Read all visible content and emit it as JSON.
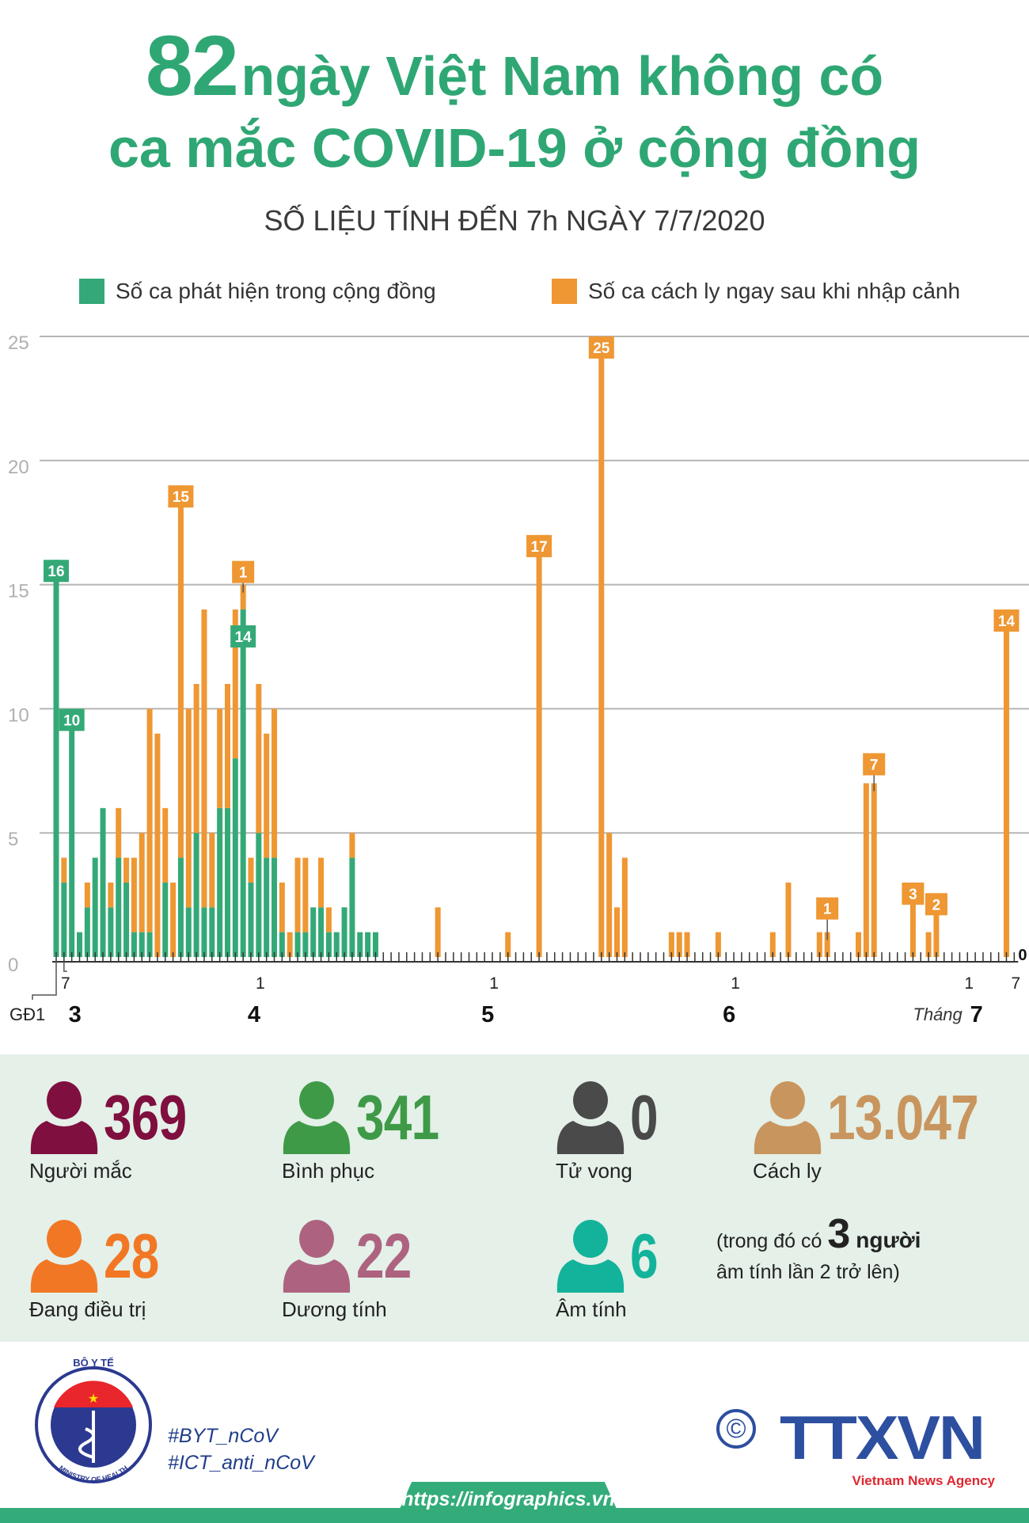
{
  "header": {
    "title_number": "82",
    "title_line1_rest": "ngày Việt Nam không có",
    "title_line2": "ca mắc COVID-19 ở cộng đồng",
    "subtitle": "SỐ LIỆU TÍNH ĐẾN 7h NGÀY 7/7/2020"
  },
  "chart_data": {
    "type": "bar",
    "stacked": true,
    "grid": true,
    "ylim": [
      0,
      25
    ],
    "yticks": [
      "0",
      "5",
      "10",
      "15",
      "20",
      "25"
    ],
    "legend_placement": "top",
    "series": [
      {
        "name": "Số ca phát hiện trong cộng đồng",
        "color": "#34a977"
      },
      {
        "name": "Số ca cách ly ngay sau khi nhập cảnh",
        "color": "#ee9733"
      }
    ],
    "date_range": [
      "2020-03-06",
      "2020-07-07"
    ],
    "days": [
      {
        "date": "2020-03-06",
        "community": 16,
        "imported": 0
      },
      {
        "date": "2020-03-07",
        "community": 3,
        "imported": 1
      },
      {
        "date": "2020-03-08",
        "community": 10,
        "imported": 0
      },
      {
        "date": "2020-03-09",
        "community": 1,
        "imported": 0
      },
      {
        "date": "2020-03-10",
        "community": 2,
        "imported": 1
      },
      {
        "date": "2020-03-11",
        "community": 4,
        "imported": 0
      },
      {
        "date": "2020-03-12",
        "community": 6,
        "imported": 0
      },
      {
        "date": "2020-03-13",
        "community": 2,
        "imported": 1
      },
      {
        "date": "2020-03-14",
        "community": 4,
        "imported": 2
      },
      {
        "date": "2020-03-15",
        "community": 3,
        "imported": 1
      },
      {
        "date": "2020-03-16",
        "community": 1,
        "imported": 3
      },
      {
        "date": "2020-03-17",
        "community": 1,
        "imported": 4
      },
      {
        "date": "2020-03-18",
        "community": 1,
        "imported": 9
      },
      {
        "date": "2020-03-19",
        "community": 0,
        "imported": 9
      },
      {
        "date": "2020-03-20",
        "community": 3,
        "imported": 3
      },
      {
        "date": "2020-03-21",
        "community": 0,
        "imported": 3
      },
      {
        "date": "2020-03-22",
        "community": 4,
        "imported": 15
      },
      {
        "date": "2020-03-23",
        "community": 2,
        "imported": 8
      },
      {
        "date": "2020-03-24",
        "community": 5,
        "imported": 6
      },
      {
        "date": "2020-03-25",
        "community": 2,
        "imported": 12
      },
      {
        "date": "2020-03-26",
        "community": 2,
        "imported": 3
      },
      {
        "date": "2020-03-27",
        "community": 6,
        "imported": 4
      },
      {
        "date": "2020-03-28",
        "community": 6,
        "imported": 5
      },
      {
        "date": "2020-03-29",
        "community": 8,
        "imported": 6
      },
      {
        "date": "2020-03-30",
        "community": 14,
        "imported": 1
      },
      {
        "date": "2020-03-31",
        "community": 3,
        "imported": 1
      },
      {
        "date": "2020-04-01",
        "community": 5,
        "imported": 6
      },
      {
        "date": "2020-04-02",
        "community": 4,
        "imported": 5
      },
      {
        "date": "2020-04-03",
        "community": 4,
        "imported": 6
      },
      {
        "date": "2020-04-04",
        "community": 1,
        "imported": 2
      },
      {
        "date": "2020-04-05",
        "community": 0,
        "imported": 1
      },
      {
        "date": "2020-04-06",
        "community": 1,
        "imported": 3
      },
      {
        "date": "2020-04-07",
        "community": 1,
        "imported": 3
      },
      {
        "date": "2020-04-08",
        "community": 2,
        "imported": 0
      },
      {
        "date": "2020-04-09",
        "community": 2,
        "imported": 2
      },
      {
        "date": "2020-04-10",
        "community": 1,
        "imported": 1
      },
      {
        "date": "2020-04-11",
        "community": 1,
        "imported": 0
      },
      {
        "date": "2020-04-12",
        "community": 2,
        "imported": 0
      },
      {
        "date": "2020-04-13",
        "community": 4,
        "imported": 1
      },
      {
        "date": "2020-04-14",
        "community": 1,
        "imported": 0
      },
      {
        "date": "2020-04-15",
        "community": 1,
        "imported": 0
      },
      {
        "date": "2020-04-16",
        "community": 1,
        "imported": 0
      },
      {
        "date": "2020-04-24",
        "community": 0,
        "imported": 2
      },
      {
        "date": "2020-05-03",
        "community": 0,
        "imported": 1
      },
      {
        "date": "2020-05-07",
        "community": 0,
        "imported": 17
      },
      {
        "date": "2020-05-15",
        "community": 0,
        "imported": 25
      },
      {
        "date": "2020-05-16",
        "community": 0,
        "imported": 5
      },
      {
        "date": "2020-05-17",
        "community": 0,
        "imported": 2
      },
      {
        "date": "2020-05-18",
        "community": 0,
        "imported": 4
      },
      {
        "date": "2020-05-24",
        "community": 0,
        "imported": 1
      },
      {
        "date": "2020-05-25",
        "community": 0,
        "imported": 1
      },
      {
        "date": "2020-05-26",
        "community": 0,
        "imported": 1
      },
      {
        "date": "2020-05-30",
        "community": 0,
        "imported": 1
      },
      {
        "date": "2020-06-06",
        "community": 0,
        "imported": 1
      },
      {
        "date": "2020-06-08",
        "community": 0,
        "imported": 3
      },
      {
        "date": "2020-06-12",
        "community": 0,
        "imported": 1
      },
      {
        "date": "2020-06-13",
        "community": 0,
        "imported": 1
      },
      {
        "date": "2020-06-17",
        "community": 0,
        "imported": 1
      },
      {
        "date": "2020-06-18",
        "community": 0,
        "imported": 7
      },
      {
        "date": "2020-06-19",
        "community": 0,
        "imported": 7
      },
      {
        "date": "2020-06-24",
        "community": 0,
        "imported": 3
      },
      {
        "date": "2020-06-26",
        "community": 0,
        "imported": 1
      },
      {
        "date": "2020-06-27",
        "community": 0,
        "imported": 2
      },
      {
        "date": "2020-07-06",
        "community": 0,
        "imported": 14
      },
      {
        "date": "2020-07-07",
        "community": 0,
        "imported": 0
      }
    ],
    "annotations": [
      {
        "date": "2020-03-06",
        "text": "16",
        "series": "community"
      },
      {
        "date": "2020-03-08",
        "text": "10",
        "series": "community"
      },
      {
        "date": "2020-03-22",
        "text": "15",
        "series": "imported"
      },
      {
        "date": "2020-03-30",
        "text": "1",
        "series": "imported"
      },
      {
        "date": "2020-03-30",
        "text": "14",
        "series": "community"
      },
      {
        "date": "2020-05-07",
        "text": "17",
        "series": "imported"
      },
      {
        "date": "2020-05-15",
        "text": "25",
        "series": "imported"
      },
      {
        "date": "2020-06-13",
        "text": "1",
        "series": "imported"
      },
      {
        "date": "2020-06-19",
        "text": "7",
        "series": "imported"
      },
      {
        "date": "2020-06-24",
        "text": "3",
        "series": "imported"
      },
      {
        "date": "2020-06-27",
        "text": "2",
        "series": "imported"
      },
      {
        "date": "2020-07-06",
        "text": "14",
        "series": "imported"
      },
      {
        "date": "2020-07-07",
        "text": "0",
        "series": "imported"
      }
    ],
    "xtick_labels": [
      {
        "date": "2020-03-07",
        "text": "7"
      },
      {
        "date": "2020-04-01",
        "text": "1"
      },
      {
        "date": "2020-05-01",
        "text": "1"
      },
      {
        "date": "2020-06-01",
        "text": "1"
      },
      {
        "date": "2020-07-01",
        "text": "1"
      },
      {
        "date": "2020-07-07",
        "text": "7"
      }
    ],
    "phase_label": "GĐ1",
    "month_labels": [
      {
        "date": "2020-03-08",
        "prefix": "",
        "text": "3"
      },
      {
        "date": "2020-03-31",
        "prefix": "",
        "text": "4"
      },
      {
        "date": "2020-04-30",
        "prefix": "",
        "text": "5"
      },
      {
        "date": "2020-05-31",
        "prefix": "",
        "text": "6"
      },
      {
        "date": "2020-06-29",
        "prefix": "Tháng",
        "text": "7"
      }
    ]
  },
  "stats": [
    {
      "value": "369",
      "label": "Người mắc",
      "color": "#7f0f3e"
    },
    {
      "value": "341",
      "label": "Bình phục",
      "color": "#3f9a48"
    },
    {
      "value": "0",
      "label": "Tử vong",
      "color": "#4a4a4a"
    },
    {
      "value": "13.047",
      "label": "Cách ly",
      "color": "#c9955e"
    },
    {
      "value": "28",
      "label": "Đang điều trị",
      "color": "#f27725"
    },
    {
      "value": "22",
      "label": "Dương tính",
      "color": "#ad6380"
    },
    {
      "value": "6",
      "label": "Âm tính",
      "color": "#12b39a"
    }
  ],
  "note": {
    "before": "(trong đó có",
    "number": "3",
    "after": "người",
    "line2": "âm tính lần 2 trở lên)"
  },
  "footer": {
    "moh_logo_text_top": "BỘ Y TẾ",
    "moh_logo_text_bottom": "MINISTRY OF HEALTH",
    "hashtag1": "#BYT_nCoV",
    "hashtag2": "#ICT_anti_nCoV",
    "copyright": "©",
    "agency_logo": "TTXVN",
    "agency_sub": "Vietnam News Agency",
    "url": "https://infographics.vn"
  }
}
